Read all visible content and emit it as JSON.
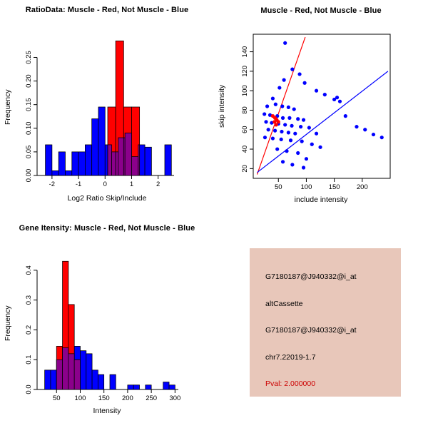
{
  "colors": {
    "red": "#FF0000",
    "blue": "#0000FF",
    "overlap": "#8B008B",
    "axis": "#000000"
  },
  "chart_data": [
    {
      "id": "ratio-histogram",
      "type": "bar",
      "title": "RatioData: Muscle - Red, Not Muscle - Blue",
      "xlabel": "Log2 Ratio Skip/Include",
      "ylabel": "Frequency",
      "xlim": [
        -2.4,
        2.6
      ],
      "ylim": [
        0,
        0.29
      ],
      "xticks": [
        -2,
        -1,
        0,
        1,
        2
      ],
      "xtick_labels": [
        "-2",
        "-1",
        "0",
        "1",
        "2"
      ],
      "yticks": [
        0,
        0.05,
        0.1,
        0.15,
        0.2,
        0.25
      ],
      "ytick_labels": [
        "0.00",
        "0.05",
        "0.10",
        "0.15",
        "0.20",
        "0.25"
      ],
      "grid": false,
      "legend": "none",
      "overlap_color": "#8B008B",
      "series": [
        {
          "name": "not-muscle",
          "color": "#0000FF",
          "bin_width": 0.25,
          "bins": [
            [
              -2.25,
              0.065
            ],
            [
              -2,
              0.01
            ],
            [
              -1.75,
              0.05
            ],
            [
              -1.5,
              0.01
            ],
            [
              -1.25,
              0.05
            ],
            [
              -1,
              0.05
            ],
            [
              -0.75,
              0.065
            ],
            [
              -0.5,
              0.12
            ],
            [
              -0.25,
              0.145
            ],
            [
              0,
              0.065
            ],
            [
              0.25,
              0.05
            ],
            [
              0.5,
              0.08
            ],
            [
              0.75,
              0.09
            ],
            [
              1,
              0.04
            ],
            [
              1.25,
              0.065
            ],
            [
              1.5,
              0.06
            ],
            [
              2.25,
              0.065
            ]
          ]
        },
        {
          "name": "muscle",
          "color": "#FF0000",
          "bin_width": 0.3,
          "bins": [
            [
              0.1,
              0.145
            ],
            [
              0.4,
              0.285
            ],
            [
              0.7,
              0.145
            ],
            [
              1,
              0.145
            ]
          ]
        }
      ]
    },
    {
      "id": "intensity-scatter",
      "type": "scatter",
      "title": "Muscle - Red, Not Muscle - Blue",
      "xlabel": "include intensity",
      "ylabel": "skip intensity",
      "xlim": [
        5,
        250
      ],
      "ylim": [
        10,
        158
      ],
      "xticks": [
        50,
        100,
        150,
        200
      ],
      "xtick_labels": [
        "50",
        "100",
        "150",
        "200"
      ],
      "yticks": [
        20,
        40,
        60,
        80,
        100,
        120,
        140
      ],
      "ytick_labels": [
        "20",
        "40",
        "60",
        "80",
        "100",
        "120",
        "140"
      ],
      "grid": false,
      "legend": "none",
      "lines": [
        {
          "name": "muscle-fit",
          "color": "#FF0000",
          "from": [
            12,
            14
          ],
          "to": [
            98,
            155
          ]
        },
        {
          "name": "not-muscle-fit",
          "color": "#0000FF",
          "from": [
            12,
            16
          ],
          "to": [
            246,
            120
          ]
        }
      ],
      "series": [
        {
          "name": "not-muscle",
          "color": "#0000FF",
          "points": [
            [
              62,
              149
            ],
            [
              75,
              122
            ],
            [
              88,
              117
            ],
            [
              60,
              111
            ],
            [
              97,
              108
            ],
            [
              52,
              103
            ],
            [
              118,
              100
            ],
            [
              133,
              96
            ],
            [
              155,
              93
            ],
            [
              160,
              89
            ],
            [
              40,
              92
            ],
            [
              30,
              84
            ],
            [
              45,
              86
            ],
            [
              57,
              84
            ],
            [
              68,
              83
            ],
            [
              78,
              81
            ],
            [
              25,
              76
            ],
            [
              35,
              75
            ],
            [
              48,
              74
            ],
            [
              58,
              72
            ],
            [
              70,
              72
            ],
            [
              85,
              71
            ],
            [
              95,
              70
            ],
            [
              28,
              68
            ],
            [
              38,
              67
            ],
            [
              50,
              66
            ],
            [
              62,
              65
            ],
            [
              74,
              64
            ],
            [
              90,
              63
            ],
            [
              105,
              62
            ],
            [
              32,
              60
            ],
            [
              44,
              59
            ],
            [
              56,
              58
            ],
            [
              68,
              57
            ],
            [
              80,
              56
            ],
            [
              118,
              56
            ],
            [
              26,
              52
            ],
            [
              40,
              51
            ],
            [
              55,
              50
            ],
            [
              72,
              49
            ],
            [
              92,
              48
            ],
            [
              110,
              45
            ],
            [
              125,
              42
            ],
            [
              48,
              40
            ],
            [
              65,
              38
            ],
            [
              85,
              36
            ],
            [
              100,
              30
            ],
            [
              58,
              27
            ],
            [
              75,
              24
            ],
            [
              95,
              21
            ],
            [
              150,
              91
            ],
            [
              170,
              74
            ],
            [
              190,
              63
            ],
            [
              205,
              60
            ],
            [
              220,
              55
            ],
            [
              235,
              52
            ]
          ]
        },
        {
          "name": "muscle",
          "color": "#FF0000",
          "points": [
            [
              40,
              74
            ],
            [
              44,
              72
            ],
            [
              47,
              70
            ],
            [
              50,
              68
            ],
            [
              43,
              68
            ],
            [
              46,
              65
            ]
          ]
        }
      ]
    },
    {
      "id": "gene-intensity-histogram",
      "type": "bar",
      "title": "Gene Itensity: Muscle - Red, Not Muscle - Blue",
      "xlabel": "Intensity",
      "ylabel": "Frequency",
      "xlim": [
        18,
        307
      ],
      "ylim": [
        0,
        0.445
      ],
      "xticks": [
        50,
        100,
        150,
        200,
        250,
        300
      ],
      "xtick_labels": [
        "50",
        "100",
        "150",
        "200",
        "250",
        "300"
      ],
      "yticks": [
        0,
        0.1,
        0.2,
        0.3,
        0.4
      ],
      "ytick_labels": [
        "0.0",
        "0.1",
        "0.2",
        "0.3",
        "0.4"
      ],
      "grid": false,
      "legend": "none",
      "overlap_color": "#8B008B",
      "series": [
        {
          "name": "not-muscle",
          "color": "#0000FF",
          "bin_width": 12.5,
          "bins": [
            [
              25,
              0.065
            ],
            [
              37.5,
              0.065
            ],
            [
              50,
              0.1
            ],
            [
              62.5,
              0.14
            ],
            [
              75,
              0.12
            ],
            [
              87.5,
              0.145
            ],
            [
              100,
              0.13
            ],
            [
              112.5,
              0.12
            ],
            [
              125,
              0.065
            ],
            [
              137.5,
              0.05
            ],
            [
              162.5,
              0.05
            ],
            [
              200,
              0.015
            ],
            [
              212.5,
              0.015
            ],
            [
              237.5,
              0.015
            ],
            [
              275,
              0.025
            ],
            [
              287.5,
              0.015
            ]
          ]
        },
        {
          "name": "muscle",
          "color": "#FF0000",
          "bin_width": 12.5,
          "bins": [
            [
              50,
              0.145
            ],
            [
              62.5,
              0.43
            ],
            [
              75,
              0.285
            ],
            [
              87.5,
              0.1
            ]
          ]
        }
      ]
    }
  ],
  "info_panel": {
    "bg": "#E8C7BA",
    "lines": [
      {
        "text": "G7180187@J940332@i_at",
        "color": "#000000"
      },
      {
        "text": "altCassette",
        "color": "#000000"
      },
      {
        "text": "G7180187@J940332@i_at",
        "color": "#000000"
      },
      {
        "text": "chr7.22019-1.7",
        "color": "#000000"
      },
      {
        "text": "Pval: 2.000000",
        "color": "#CC0000"
      }
    ]
  }
}
